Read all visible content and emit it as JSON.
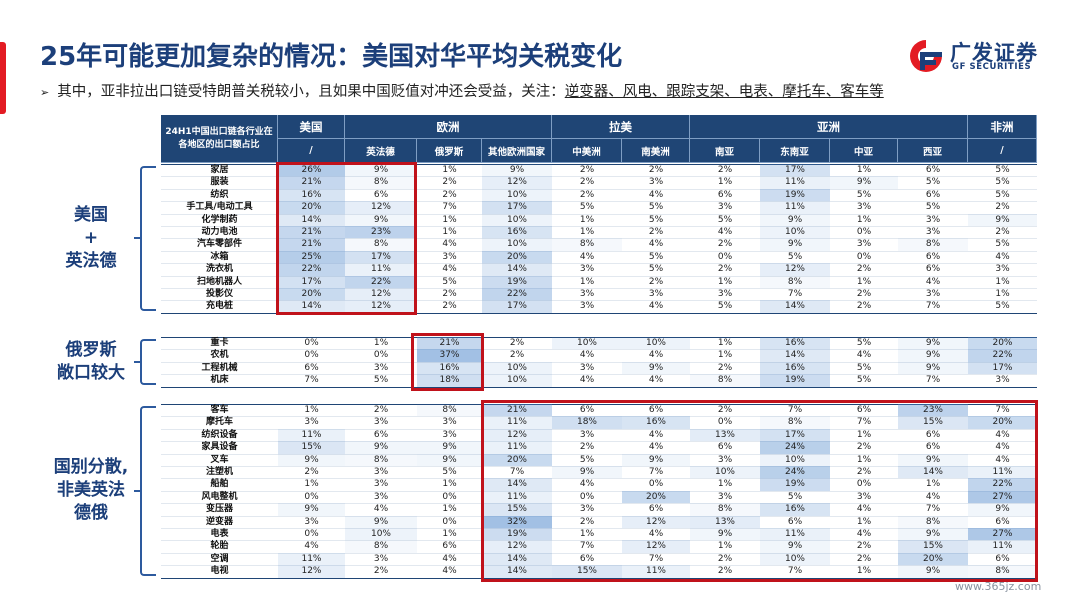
{
  "title": "25年可能更加复杂的情况：美国对华平均关税变化",
  "logo": {
    "name": "广发证券",
    "subtitle": "GF SECURITIES",
    "icon": "gf-logo-icon"
  },
  "bullet": {
    "lead": "其中，亚非拉出口链受特朗普关税较小，且如果中国贬值对冲还会受益，关注：",
    "focus": "逆变器、风电、跟踪支架、电表、摩托车、客车等"
  },
  "watermark": "www.365jz.com",
  "table": {
    "corner": "24H1中国出口链各行业在各地区的出口额占比",
    "regions": [
      {
        "name": "美国",
        "span": 1
      },
      {
        "name": "欧洲",
        "span": 3
      },
      {
        "name": "拉美",
        "span": 2
      },
      {
        "name": "亚洲",
        "span": 4
      },
      {
        "name": "非洲",
        "span": 1
      }
    ],
    "columns": [
      "/",
      "英法德",
      "俄罗斯",
      "其他欧洲国家",
      "中美洲",
      "南美洲",
      "南亚",
      "东南亚",
      "中亚",
      "西亚",
      "/"
    ],
    "groups": [
      {
        "label": [
          "美国",
          "+",
          "英法德"
        ],
        "rows": [
          {
            "name": "家居",
            "values": [
              "26%",
              "9%",
              "1%",
              "9%",
              "2%",
              "2%",
              "2%",
              "17%",
              "1%",
              "6%",
              "5%"
            ]
          },
          {
            "name": "服装",
            "values": [
              "21%",
              "8%",
              "2%",
              "12%",
              "2%",
              "3%",
              "1%",
              "11%",
              "9%",
              "5%",
              "5%"
            ]
          },
          {
            "name": "纺织",
            "values": [
              "16%",
              "6%",
              "2%",
              "10%",
              "2%",
              "4%",
              "6%",
              "19%",
              "5%",
              "6%",
              "5%"
            ]
          },
          {
            "name": "手工具/电动工具",
            "values": [
              "20%",
              "12%",
              "7%",
              "17%",
              "5%",
              "5%",
              "3%",
              "11%",
              "3%",
              "5%",
              "2%"
            ]
          },
          {
            "name": "化学制药",
            "values": [
              "14%",
              "9%",
              "1%",
              "10%",
              "1%",
              "5%",
              "5%",
              "9%",
              "1%",
              "3%",
              "9%"
            ]
          },
          {
            "name": "动力电池",
            "values": [
              "21%",
              "23%",
              "1%",
              "16%",
              "1%",
              "2%",
              "4%",
              "10%",
              "0%",
              "3%",
              "2%"
            ]
          },
          {
            "name": "汽车零部件",
            "values": [
              "21%",
              "8%",
              "4%",
              "10%",
              "8%",
              "4%",
              "2%",
              "9%",
              "3%",
              "8%",
              "5%"
            ]
          },
          {
            "name": "冰箱",
            "values": [
              "25%",
              "17%",
              "3%",
              "20%",
              "4%",
              "5%",
              "0%",
              "5%",
              "0%",
              "6%",
              "4%"
            ]
          },
          {
            "name": "洗衣机",
            "values": [
              "22%",
              "11%",
              "4%",
              "14%",
              "3%",
              "5%",
              "2%",
              "12%",
              "2%",
              "6%",
              "3%"
            ]
          },
          {
            "name": "扫地机器人",
            "values": [
              "17%",
              "22%",
              "5%",
              "19%",
              "1%",
              "2%",
              "1%",
              "8%",
              "1%",
              "4%",
              "1%"
            ]
          },
          {
            "name": "投影仪",
            "values": [
              "20%",
              "12%",
              "2%",
              "22%",
              "3%",
              "3%",
              "3%",
              "7%",
              "2%",
              "3%",
              "1%"
            ]
          },
          {
            "name": "充电桩",
            "values": [
              "14%",
              "12%",
              "2%",
              "17%",
              "3%",
              "4%",
              "5%",
              "14%",
              "2%",
              "7%",
              "5%"
            ]
          }
        ]
      },
      {
        "label": [
          "俄罗斯",
          "敞口较大"
        ],
        "rows": [
          {
            "name": "重卡",
            "values": [
              "0%",
              "1%",
              "21%",
              "2%",
              "10%",
              "10%",
              "1%",
              "16%",
              "5%",
              "9%",
              "20%"
            ]
          },
          {
            "name": "农机",
            "values": [
              "0%",
              "0%",
              "37%",
              "2%",
              "4%",
              "4%",
              "1%",
              "14%",
              "4%",
              "9%",
              "22%"
            ]
          },
          {
            "name": "工程机械",
            "values": [
              "6%",
              "3%",
              "16%",
              "10%",
              "3%",
              "9%",
              "2%",
              "16%",
              "5%",
              "9%",
              "17%"
            ]
          },
          {
            "name": "机床",
            "values": [
              "7%",
              "5%",
              "18%",
              "10%",
              "4%",
              "4%",
              "8%",
              "19%",
              "5%",
              "7%",
              "3%"
            ]
          }
        ]
      },
      {
        "label": [
          "国别分散,",
          "非美英法",
          "德俄"
        ],
        "rows": [
          {
            "name": "客车",
            "values": [
              "1%",
              "2%",
              "8%",
              "21%",
              "6%",
              "6%",
              "2%",
              "7%",
              "6%",
              "23%",
              "7%"
            ]
          },
          {
            "name": "摩托车",
            "values": [
              "3%",
              "3%",
              "3%",
              "11%",
              "18%",
              "16%",
              "0%",
              "8%",
              "7%",
              "15%",
              "20%"
            ]
          },
          {
            "name": "纺织设备",
            "values": [
              "11%",
              "6%",
              "3%",
              "12%",
              "3%",
              "4%",
              "13%",
              "17%",
              "1%",
              "6%",
              "4%"
            ]
          },
          {
            "name": "家具设备",
            "values": [
              "15%",
              "9%",
              "9%",
              "11%",
              "2%",
              "4%",
              "6%",
              "24%",
              "2%",
              "6%",
              "4%"
            ]
          },
          {
            "name": "叉车",
            "values": [
              "9%",
              "8%",
              "9%",
              "20%",
              "5%",
              "9%",
              "3%",
              "10%",
              "1%",
              "9%",
              "4%"
            ]
          },
          {
            "name": "注塑机",
            "values": [
              "2%",
              "3%",
              "5%",
              "7%",
              "9%",
              "7%",
              "10%",
              "24%",
              "2%",
              "14%",
              "11%"
            ]
          },
          {
            "name": "船舶",
            "values": [
              "1%",
              "3%",
              "1%",
              "14%",
              "4%",
              "0%",
              "1%",
              "19%",
              "0%",
              "1%",
              "22%"
            ]
          },
          {
            "name": "风电整机",
            "values": [
              "0%",
              "3%",
              "0%",
              "11%",
              "0%",
              "20%",
              "3%",
              "5%",
              "3%",
              "4%",
              "27%"
            ]
          },
          {
            "name": "变压器",
            "values": [
              "9%",
              "4%",
              "1%",
              "15%",
              "3%",
              "6%",
              "8%",
              "16%",
              "4%",
              "7%",
              "9%"
            ]
          },
          {
            "name": "逆变器",
            "values": [
              "3%",
              "9%",
              "0%",
              "32%",
              "2%",
              "12%",
              "13%",
              "6%",
              "1%",
              "8%",
              "6%"
            ]
          },
          {
            "name": "电表",
            "values": [
              "0%",
              "10%",
              "1%",
              "19%",
              "1%",
              "4%",
              "9%",
              "11%",
              "4%",
              "9%",
              "27%"
            ]
          },
          {
            "name": "轮胎",
            "values": [
              "4%",
              "8%",
              "6%",
              "12%",
              "7%",
              "12%",
              "1%",
              "9%",
              "2%",
              "15%",
              "11%"
            ]
          },
          {
            "name": "空调",
            "values": [
              "11%",
              "3%",
              "4%",
              "14%",
              "6%",
              "7%",
              "2%",
              "10%",
              "2%",
              "20%",
              "6%"
            ]
          },
          {
            "name": "电视",
            "values": [
              "12%",
              "2%",
              "4%",
              "14%",
              "15%",
              "11%",
              "2%",
              "7%",
              "1%",
              "9%",
              "8%"
            ]
          }
        ]
      }
    ]
  }
}
